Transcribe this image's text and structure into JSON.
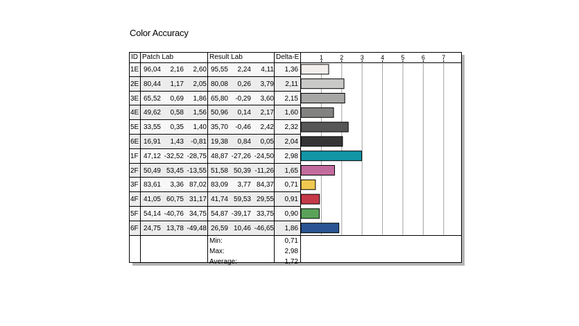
{
  "title": "Color Accuracy",
  "table": {
    "headers": {
      "id": "ID",
      "patch": "Patch Lab",
      "result": "Result Lab",
      "delta": "Delta-E"
    },
    "rows": [
      {
        "id": "1E",
        "patch": [
          "96,04",
          "2,16",
          "2,60"
        ],
        "result": [
          "95,55",
          "2,24",
          "4,11"
        ],
        "delta": "1,36"
      },
      {
        "id": "2E",
        "patch": [
          "80,44",
          "1,17",
          "2,05"
        ],
        "result": [
          "80,08",
          "0,26",
          "3,79"
        ],
        "delta": "2,11"
      },
      {
        "id": "3E",
        "patch": [
          "65,52",
          "0,69",
          "1,86"
        ],
        "result": [
          "65,80",
          "-0,29",
          "3,60"
        ],
        "delta": "2,15"
      },
      {
        "id": "4E",
        "patch": [
          "49,62",
          "0,58",
          "1,56"
        ],
        "result": [
          "50,96",
          "0,14",
          "2,17"
        ],
        "delta": "1,60"
      },
      {
        "id": "5E",
        "patch": [
          "33,55",
          "0,35",
          "1,40"
        ],
        "result": [
          "35,70",
          "-0,46",
          "2,42"
        ],
        "delta": "2,32"
      },
      {
        "id": "6E",
        "patch": [
          "16,91",
          "1,43",
          "-0,81"
        ],
        "result": [
          "19,38",
          "0,84",
          "0,05"
        ],
        "delta": "2,04"
      },
      {
        "id": "1F",
        "patch": [
          "47,12",
          "-32,52",
          "-28,75"
        ],
        "result": [
          "48,87",
          "-27,26",
          "-24,50"
        ],
        "delta": "2,98"
      },
      {
        "id": "2F",
        "patch": [
          "50,49",
          "53,45",
          "-13,55"
        ],
        "result": [
          "51,58",
          "50,39",
          "-11,26"
        ],
        "delta": "1,65"
      },
      {
        "id": "3F",
        "patch": [
          "83,61",
          "3,36",
          "87,02"
        ],
        "result": [
          "83,09",
          "3,77",
          "84,37"
        ],
        "delta": "0,71"
      },
      {
        "id": "4F",
        "patch": [
          "41,05",
          "60,75",
          "31,17"
        ],
        "result": [
          "41,74",
          "59,53",
          "29,55"
        ],
        "delta": "0,91"
      },
      {
        "id": "5F",
        "patch": [
          "54,14",
          "-40,76",
          "34,75"
        ],
        "result": [
          "54,87",
          "-39,17",
          "33,75"
        ],
        "delta": "0,90"
      },
      {
        "id": "6F",
        "patch": [
          "24,75",
          "13,78",
          "-49,48"
        ],
        "result": [
          "26,59",
          "10,46",
          "-46,65"
        ],
        "delta": "1,86"
      }
    ],
    "summary": [
      {
        "label": "Min:",
        "value": "0,71"
      },
      {
        "label": "Max:",
        "value": "2,98"
      },
      {
        "label": "Average:",
        "value": "1,72"
      }
    ]
  },
  "chart_data": {
    "type": "bar",
    "orientation": "horizontal",
    "xlim": [
      0,
      7.5
    ],
    "ticks": [
      1,
      2,
      3,
      4,
      5,
      6,
      7
    ],
    "grid": true,
    "categories": [
      "1E",
      "2E",
      "3E",
      "4E",
      "5E",
      "6E",
      "1F",
      "2F",
      "3F",
      "4F",
      "5F",
      "6F"
    ],
    "values": [
      1.36,
      2.11,
      2.15,
      1.6,
      2.32,
      2.04,
      2.98,
      1.65,
      0.71,
      0.91,
      0.9,
      1.86
    ],
    "colors": [
      "#f3efed",
      "#c9c9c7",
      "#a7a7a5",
      "#828280",
      "#565656",
      "#353535",
      "#1296a6",
      "#c46b9e",
      "#f0c850",
      "#c43a48",
      "#5aa25a",
      "#2a5592"
    ]
  },
  "colors": {
    "row_fill": "#ececec",
    "row_stripe": "#f7f7f7",
    "grid": "#a0a0a0",
    "border": "#000000"
  }
}
